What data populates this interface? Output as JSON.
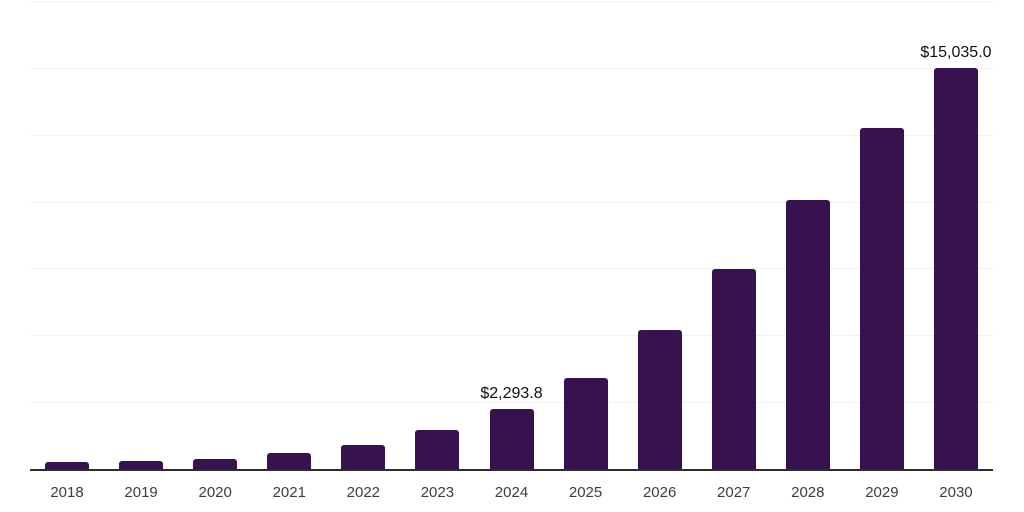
{
  "chart": {
    "background": "#ffffff",
    "bar_color": "#37124e",
    "grid_color": "#f1f1f4",
    "axis_color": "#2d2d2d",
    "tick_label_color": "#3d3d3d",
    "value_label_color": "#101010"
  },
  "chart_data": {
    "type": "bar",
    "title": "",
    "xlabel": "",
    "ylabel": "",
    "categories": [
      "2018",
      "2019",
      "2020",
      "2021",
      "2022",
      "2023",
      "2024",
      "2025",
      "2026",
      "2027",
      "2028",
      "2029",
      "2030"
    ],
    "values": [
      300,
      335,
      425,
      620,
      950,
      1480,
      2293.8,
      3450,
      5250,
      7500,
      10100,
      12800,
      15035.0
    ],
    "value_labels": [
      {
        "category": "2024",
        "text": "$2,293.8"
      },
      {
        "category": "2030",
        "text": "$15,035.0"
      }
    ],
    "ylim": [
      0,
      17500
    ],
    "grid_interval": 2500,
    "grid": true,
    "legend": false,
    "y_axis_tick_labels_visible": false,
    "bar_corner_radius": "rounded-top"
  }
}
